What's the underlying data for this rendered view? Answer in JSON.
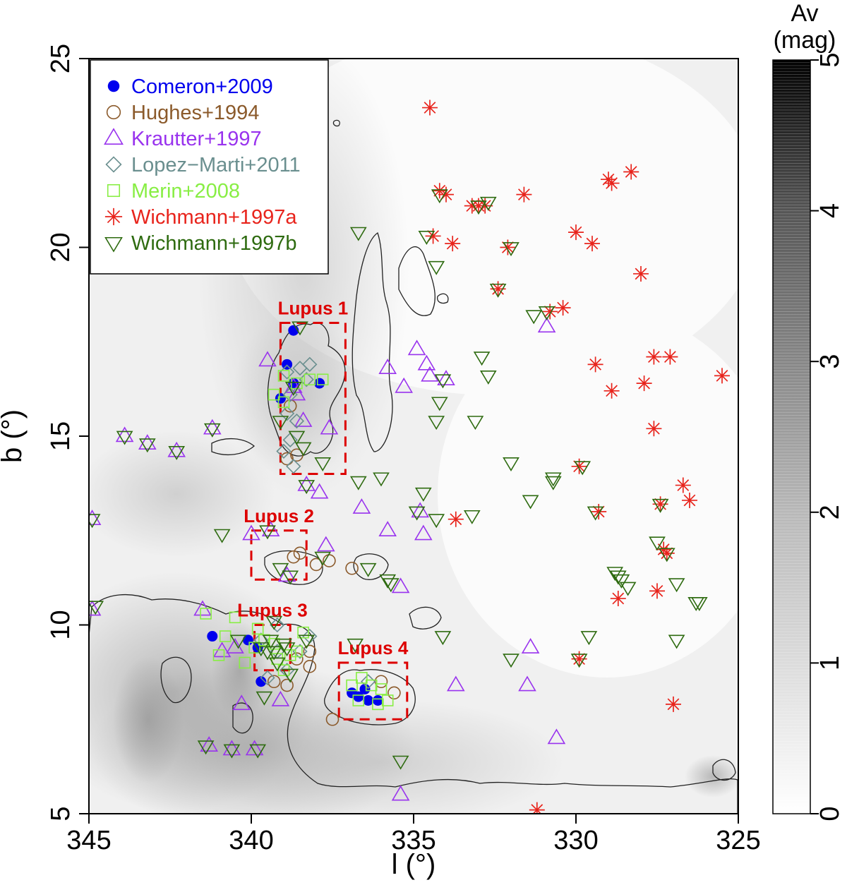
{
  "chart_data": {
    "type": "scatter",
    "xlabel": "l (°)",
    "ylabel": "b (°)",
    "xlim": [
      345,
      325
    ],
    "ylim": [
      5,
      25
    ],
    "x_ticks": [
      "345",
      "340",
      "335",
      "330",
      "325"
    ],
    "y_ticks": [
      "5",
      "10",
      "15",
      "20",
      "25"
    ],
    "colorbar": {
      "title_line1": "Av",
      "title_line2": "(mag)",
      "range": [
        0,
        5
      ],
      "ticks": [
        "0",
        "1",
        "2",
        "3",
        "4",
        "5"
      ]
    },
    "regions": [
      {
        "name": "Lupus 1",
        "l_range": [
          337.1,
          339.1
        ],
        "b_range": [
          14.0,
          18.0
        ]
      },
      {
        "name": "Lupus 2",
        "l_range": [
          338.3,
          340.0
        ],
        "b_range": [
          11.2,
          12.5
        ]
      },
      {
        "name": "Lupus 3",
        "l_range": [
          338.8,
          339.9
        ],
        "b_range": [
          8.8,
          10.0
        ]
      },
      {
        "name": "Lupus 4",
        "l_range": [
          335.2,
          337.3
        ],
        "b_range": [
          7.5,
          9.0
        ]
      }
    ],
    "series": [
      {
        "name": "Comeron+2009",
        "marker": "filled-circle",
        "color": "#0000ee",
        "points": [
          [
            338.7,
            17.8
          ],
          [
            338.9,
            16.9
          ],
          [
            338.7,
            16.4
          ],
          [
            337.9,
            16.4
          ],
          [
            339.1,
            16.0
          ],
          [
            341.2,
            9.7
          ],
          [
            340.1,
            9.6
          ],
          [
            339.8,
            9.4
          ],
          [
            339.7,
            8.5
          ],
          [
            336.9,
            8.2
          ],
          [
            336.7,
            8.1
          ],
          [
            336.4,
            8.0
          ],
          [
            336.1,
            8.0
          ],
          [
            336.5,
            8.3
          ]
        ]
      },
      {
        "name": "Hughes+1994",
        "marker": "open-circle",
        "color": "#8b5a2b",
        "points": [
          [
            338.8,
            15.8
          ],
          [
            338.6,
            14.5
          ],
          [
            338.9,
            14.4
          ],
          [
            338.5,
            11.9
          ],
          [
            338.7,
            11.8
          ],
          [
            337.6,
            11.7
          ],
          [
            338.0,
            11.6
          ],
          [
            336.9,
            11.5
          ],
          [
            338.2,
            9.3
          ],
          [
            338.6,
            9.1
          ],
          [
            338.2,
            8.9
          ],
          [
            339.3,
            8.5
          ],
          [
            338.9,
            8.4
          ],
          [
            336.0,
            8.5
          ],
          [
            335.6,
            8.2
          ],
          [
            337.5,
            7.5
          ]
        ]
      },
      {
        "name": "Krautter+1997",
        "marker": "open-triangle",
        "color": "#9933ee",
        "points": [
          [
            343.9,
            15.0
          ],
          [
            343.2,
            14.8
          ],
          [
            342.3,
            14.6
          ],
          [
            341.2,
            15.2
          ],
          [
            339.5,
            17.0
          ],
          [
            338.7,
            16.3
          ],
          [
            338.4,
            15.4
          ],
          [
            337.6,
            15.2
          ],
          [
            338.3,
            13.7
          ],
          [
            337.9,
            13.5
          ],
          [
            340.0,
            12.4
          ],
          [
            339.4,
            12.5
          ],
          [
            338.9,
            11.3
          ],
          [
            337.7,
            12.1
          ],
          [
            336.6,
            13.1
          ],
          [
            335.8,
            12.5
          ],
          [
            334.7,
            12.4
          ],
          [
            334.8,
            13.0
          ],
          [
            335.4,
            11.0
          ],
          [
            333.7,
            8.4
          ],
          [
            331.5,
            8.4
          ],
          [
            331.4,
            9.4
          ],
          [
            330.6,
            7.0
          ],
          [
            330.9,
            17.9
          ],
          [
            335.3,
            16.3
          ],
          [
            335.8,
            16.8
          ],
          [
            334.9,
            17.3
          ],
          [
            334.5,
            16.6
          ],
          [
            334.0,
            16.5
          ],
          [
            338.6,
            16.1
          ],
          [
            340.5,
            9.4
          ],
          [
            340.9,
            9.3
          ],
          [
            341.5,
            10.4
          ],
          [
            340.3,
            7.9
          ],
          [
            340.6,
            6.7
          ],
          [
            339.9,
            6.7
          ],
          [
            341.3,
            6.8
          ],
          [
            339.1,
            8.0
          ],
          [
            335.4,
            5.5
          ],
          [
            334.6,
            16.9
          ],
          [
            344.9,
            12.8
          ],
          [
            344.9,
            10.4
          ]
        ]
      },
      {
        "name": "Lopez-Marti+2011",
        "marker": "open-diamond",
        "color": "#6a8f8f",
        "points": [
          [
            338.9,
            16.7
          ],
          [
            338.5,
            16.8
          ],
          [
            338.2,
            16.9
          ],
          [
            338.3,
            16.5
          ],
          [
            338.8,
            16.1
          ],
          [
            338.9,
            15.6
          ],
          [
            338.6,
            15.4
          ],
          [
            338.8,
            14.9
          ],
          [
            339.0,
            14.6
          ],
          [
            338.7,
            14.2
          ],
          [
            339.2,
            10.0
          ],
          [
            339.7,
            9.6
          ],
          [
            339.2,
            9.3
          ],
          [
            338.5,
            9.3
          ],
          [
            338.2,
            9.7
          ],
          [
            339.5,
            8.6
          ],
          [
            338.9,
            8.8
          ],
          [
            336.4,
            8.5
          ]
        ]
      },
      {
        "name": "Merin+2008",
        "marker": "open-square",
        "color": "#88ee44",
        "points": [
          [
            339.0,
            16.6
          ],
          [
            338.6,
            16.4
          ],
          [
            338.2,
            16.5
          ],
          [
            337.8,
            16.5
          ],
          [
            339.3,
            16.1
          ],
          [
            339.0,
            15.9
          ],
          [
            341.4,
            10.3
          ],
          [
            340.5,
            10.2
          ],
          [
            340.8,
            9.7
          ],
          [
            341.0,
            9.2
          ],
          [
            340.2,
            9.0
          ],
          [
            339.9,
            9.4
          ],
          [
            339.6,
            9.6
          ],
          [
            339.3,
            9.5
          ],
          [
            339.2,
            9.1
          ],
          [
            339.0,
            8.8
          ],
          [
            338.8,
            9.2
          ],
          [
            338.6,
            9.3
          ],
          [
            338.4,
            9.8
          ],
          [
            339.8,
            9.9
          ],
          [
            336.9,
            8.4
          ],
          [
            336.6,
            8.6
          ],
          [
            336.3,
            8.4
          ],
          [
            336.0,
            8.3
          ],
          [
            335.8,
            8.0
          ],
          [
            336.7,
            8.0
          ],
          [
            336.1,
            7.9
          ]
        ]
      },
      {
        "name": "Wichmann+1997a",
        "marker": "asterisk",
        "color": "#e8241c",
        "points": [
          [
            334.5,
            23.7
          ],
          [
            334.2,
            21.5
          ],
          [
            333.0,
            21.1
          ],
          [
            332.8,
            21.1
          ],
          [
            331.6,
            21.4
          ],
          [
            333.8,
            20.1
          ],
          [
            329.0,
            21.8
          ],
          [
            328.9,
            21.7
          ],
          [
            328.3,
            22.0
          ],
          [
            330.0,
            20.4
          ],
          [
            329.5,
            20.1
          ],
          [
            328.0,
            19.3
          ],
          [
            330.4,
            18.4
          ],
          [
            330.8,
            18.3
          ],
          [
            329.4,
            16.9
          ],
          [
            328.9,
            16.2
          ],
          [
            327.9,
            16.4
          ],
          [
            327.6,
            17.1
          ],
          [
            327.1,
            17.1
          ],
          [
            327.6,
            15.2
          ],
          [
            325.5,
            16.6
          ],
          [
            326.7,
            13.7
          ],
          [
            326.5,
            13.3
          ],
          [
            327.2,
            11.9
          ],
          [
            327.5,
            10.9
          ],
          [
            328.7,
            10.7
          ],
          [
            329.9,
            9.1
          ],
          [
            327.0,
            7.9
          ],
          [
            331.2,
            5.1
          ],
          [
            333.7,
            12.8
          ],
          [
            329.9,
            14.2
          ],
          [
            329.3,
            13.0
          ],
          [
            327.4,
            13.2
          ],
          [
            327.3,
            12.0
          ],
          [
            334.4,
            20.3
          ],
          [
            332.1,
            20.0
          ],
          [
            332.4,
            18.9
          ],
          [
            334.0,
            21.4
          ],
          [
            333.2,
            21.1
          ]
        ]
      },
      {
        "name": "Wichmann+1997b",
        "marker": "open-down-triangle",
        "color": "#2e6b10",
        "points": [
          [
            343.9,
            15.0
          ],
          [
            343.2,
            14.8
          ],
          [
            342.3,
            14.6
          ],
          [
            341.2,
            15.2
          ],
          [
            338.5,
            17.9
          ],
          [
            338.7,
            16.3
          ],
          [
            339.1,
            15.4
          ],
          [
            338.6,
            15.0
          ],
          [
            338.4,
            14.7
          ],
          [
            337.8,
            14.3
          ],
          [
            338.3,
            13.7
          ],
          [
            336.7,
            13.8
          ],
          [
            336.0,
            13.9
          ],
          [
            334.7,
            13.5
          ],
          [
            334.3,
            12.8
          ],
          [
            334.9,
            13.0
          ],
          [
            336.7,
            20.4
          ],
          [
            334.3,
            19.5
          ],
          [
            334.6,
            20.3
          ],
          [
            334.2,
            21.4
          ],
          [
            333.0,
            21.1
          ],
          [
            332.7,
            21.2
          ],
          [
            332.0,
            20.0
          ],
          [
            332.4,
            18.9
          ],
          [
            332.9,
            17.1
          ],
          [
            332.7,
            16.6
          ],
          [
            331.3,
            18.2
          ],
          [
            330.9,
            18.3
          ],
          [
            334.1,
            16.5
          ],
          [
            334.2,
            15.9
          ],
          [
            334.3,
            15.4
          ],
          [
            333.1,
            15.4
          ],
          [
            332.0,
            14.3
          ],
          [
            331.4,
            13.3
          ],
          [
            330.7,
            13.8
          ],
          [
            330.7,
            13.9
          ],
          [
            329.8,
            14.2
          ],
          [
            329.4,
            13.0
          ],
          [
            327.4,
            13.2
          ],
          [
            327.5,
            12.2
          ],
          [
            327.2,
            11.9
          ],
          [
            326.9,
            11.1
          ],
          [
            326.3,
            10.6
          ],
          [
            326.2,
            10.6
          ],
          [
            328.8,
            11.4
          ],
          [
            328.7,
            11.3
          ],
          [
            328.4,
            11.0
          ],
          [
            328.6,
            11.2
          ],
          [
            326.9,
            9.6
          ],
          [
            329.6,
            9.7
          ],
          [
            329.9,
            9.1
          ],
          [
            332.0,
            9.1
          ],
          [
            333.2,
            12.9
          ],
          [
            334.1,
            9.7
          ],
          [
            336.4,
            11.5
          ],
          [
            335.8,
            11.2
          ],
          [
            335.7,
            11.1
          ],
          [
            339.5,
            12.5
          ],
          [
            339.1,
            11.5
          ],
          [
            338.8,
            11.3
          ],
          [
            337.8,
            11.8
          ],
          [
            339.3,
            10.1
          ],
          [
            339.5,
            9.3
          ],
          [
            339.3,
            9.3
          ],
          [
            339.0,
            9.5
          ],
          [
            339.4,
            9.6
          ],
          [
            339.7,
            9.4
          ],
          [
            339.2,
            9.0
          ],
          [
            338.9,
            9.4
          ],
          [
            338.8,
            8.7
          ],
          [
            339.6,
            8.1
          ],
          [
            338.3,
            9.6
          ],
          [
            340.4,
            9.6
          ],
          [
            340.6,
            6.7
          ],
          [
            341.4,
            6.8
          ],
          [
            339.8,
            6.7
          ],
          [
            336.8,
            9.5
          ],
          [
            335.4,
            6.4
          ],
          [
            340.9,
            12.4
          ],
          [
            344.9,
            12.8
          ],
          [
            344.8,
            10.5
          ]
        ]
      }
    ],
    "legend": [
      {
        "label": "Comeron+2009",
        "color": "#0000ee",
        "marker": "filled-circle"
      },
      {
        "label": "Hughes+1994",
        "color": "#8b5a2b",
        "marker": "open-circle"
      },
      {
        "label": "Krautter+1997",
        "color": "#9933ee",
        "marker": "open-triangle"
      },
      {
        "label": "Lopez−Marti+2011",
        "color": "#6a8f8f",
        "marker": "open-diamond"
      },
      {
        "label": "Merin+2008",
        "color": "#88ee44",
        "marker": "open-square"
      },
      {
        "label": "Wichmann+1997a",
        "color": "#e8241c",
        "marker": "asterisk"
      },
      {
        "label": "Wichmann+1997b",
        "color": "#2e6b10",
        "marker": "open-down-triangle"
      }
    ],
    "legend_position": "top-left",
    "region_color": "#dd0000"
  }
}
